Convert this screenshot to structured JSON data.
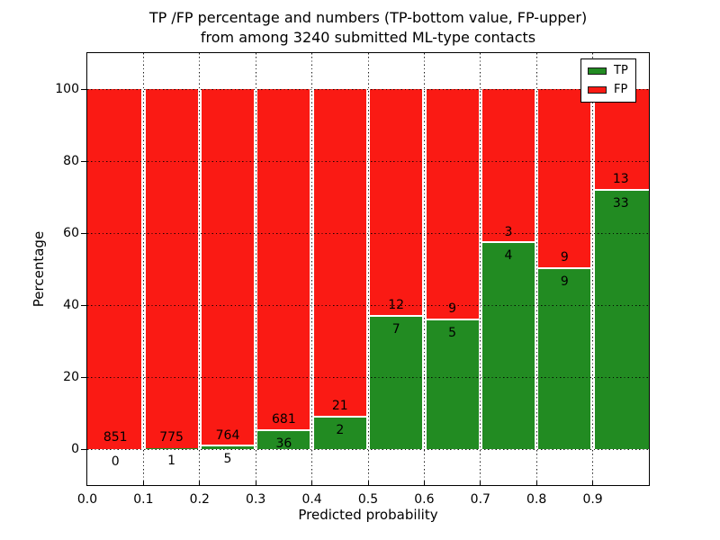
{
  "title": {
    "line1": "TP /FP percentage and numbers (TP-bottom value, FP-upper)",
    "line2": "from among 3240 submitted ML-type contacts"
  },
  "axes": {
    "xlabel": "Predicted probability",
    "ylabel": "Percentage",
    "x_ticks": [
      "0.0",
      "0.1",
      "0.2",
      "0.3",
      "0.4",
      "0.5",
      "0.6",
      "0.7",
      "0.8",
      "0.9"
    ],
    "y_ticks": [
      "0",
      "20",
      "40",
      "60",
      "80",
      "100"
    ]
  },
  "legend": {
    "items": [
      {
        "label": "TP",
        "color": "#228b22"
      },
      {
        "label": "FP",
        "color": "#fa1a14"
      }
    ]
  },
  "colors": {
    "tp_green": "#228b22",
    "fp_red": "#fa1a14",
    "grid": "#000000",
    "background": "#ffffff"
  },
  "chart_data": {
    "type": "bar",
    "stacked": true,
    "normalized_to_percent": 100,
    "title": "TP /FP percentage and numbers (TP-bottom value, FP-upper) from among 3240 submitted ML-type contacts",
    "xlabel": "Predicted probability",
    "ylabel": "Percentage",
    "xlim": [
      0.0,
      1.0
    ],
    "ylim": [
      -10,
      110
    ],
    "grid": "dotted black, horizontal every 20%, vertical every 0.1",
    "legend_position": "upper right",
    "total_contacts": 3240,
    "bin_width": 0.1,
    "bins": [
      {
        "range": [
          0.0,
          0.1
        ],
        "tp": 0,
        "fp": 851,
        "tp_pct": 0.0
      },
      {
        "range": [
          0.1,
          0.2
        ],
        "tp": 1,
        "fp": 775,
        "tp_pct": 0.13
      },
      {
        "range": [
          0.2,
          0.3
        ],
        "tp": 5,
        "fp": 764,
        "tp_pct": 0.65
      },
      {
        "range": [
          0.3,
          0.4
        ],
        "tp": 36,
        "fp": 681,
        "tp_pct": 5.02
      },
      {
        "range": [
          0.4,
          0.5
        ],
        "tp": 2,
        "fp": 21,
        "tp_pct": 8.7
      },
      {
        "range": [
          0.5,
          0.6
        ],
        "tp": 7,
        "fp": 12,
        "tp_pct": 36.84
      },
      {
        "range": [
          0.6,
          0.7
        ],
        "tp": 5,
        "fp": 9,
        "tp_pct": 35.71
      },
      {
        "range": [
          0.7,
          0.8
        ],
        "tp": 4,
        "fp": 3,
        "tp_pct": 57.14
      },
      {
        "range": [
          0.8,
          0.9
        ],
        "tp": 9,
        "fp": 9,
        "tp_pct": 50.0
      },
      {
        "range": [
          0.9,
          1.0
        ],
        "tp": 33,
        "fp": 13,
        "tp_pct": 71.74
      }
    ]
  }
}
